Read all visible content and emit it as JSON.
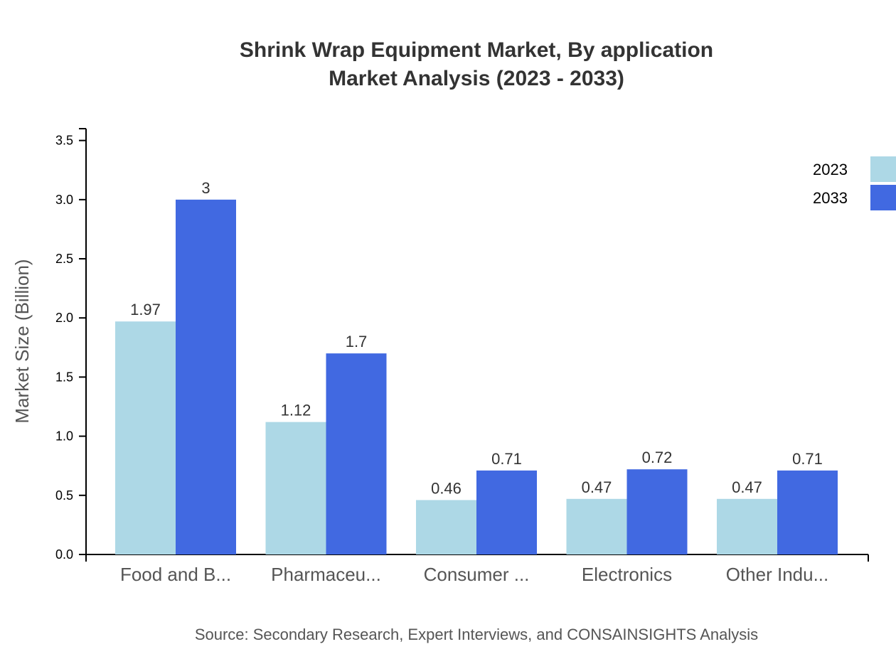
{
  "chart_data": {
    "type": "bar",
    "title": "Shrink Wrap Equipment Market, By application",
    "subtitle": "Market Analysis (2023 - 2033)",
    "xlabel": "",
    "ylabel": "Market Size (Billion)",
    "ylim": [
      0,
      3.6
    ],
    "yticks": [
      "0.0",
      "0.5",
      "1.0",
      "1.5",
      "2.0",
      "2.5",
      "3.0",
      "3.5"
    ],
    "categories": [
      "Food and B...",
      "Pharmaceu...",
      "Consumer ...",
      "Electronics",
      "Other Indu..."
    ],
    "series": [
      {
        "name": "2023",
        "color": "#add8e6",
        "values": [
          1.97,
          1.12,
          0.46,
          0.47,
          0.47
        ]
      },
      {
        "name": "2033",
        "color": "#4169e1",
        "values": [
          3,
          1.7,
          0.71,
          0.72,
          0.71
        ]
      }
    ],
    "grid": false,
    "legend": "top-right",
    "source": "Source: Secondary Research, Expert Interviews, and CONSAINSIGHTS Analysis"
  }
}
